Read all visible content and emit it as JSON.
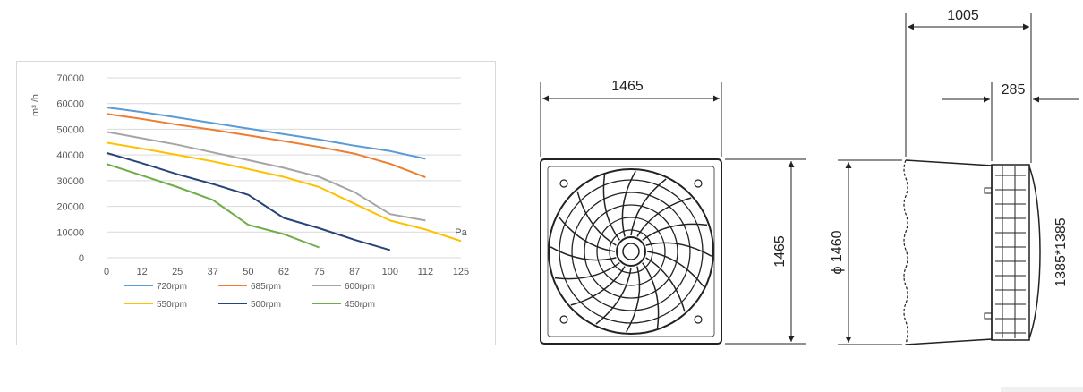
{
  "chart_data": {
    "type": "line",
    "ylabel": "m³ /h",
    "xlabel": "Pa",
    "ylim": [
      0,
      70000
    ],
    "yticks": [
      0,
      10000,
      20000,
      30000,
      40000,
      50000,
      60000,
      70000
    ],
    "categories": [
      "0",
      "12",
      "25",
      "37",
      "50",
      "62",
      "75",
      "87",
      "100",
      "112",
      "125"
    ],
    "grid": true,
    "legend_position": "bottom",
    "series": [
      {
        "name": "720rpm",
        "color": "#5b9bd5",
        "values": [
          58500,
          56700,
          54600,
          52400,
          50300,
          48100,
          46000,
          43600,
          41500,
          38500,
          null
        ]
      },
      {
        "name": "685rpm",
        "color": "#ed7d31",
        "values": [
          56000,
          54000,
          51800,
          49800,
          47600,
          45400,
          43100,
          40500,
          36600,
          31300,
          null
        ]
      },
      {
        "name": "600rpm",
        "color": "#a5a5a5",
        "values": [
          49000,
          46500,
          44000,
          41000,
          38000,
          35000,
          31500,
          25500,
          17000,
          14500,
          null
        ]
      },
      {
        "name": "550rpm",
        "color": "#ffc000",
        "values": [
          44800,
          42500,
          40000,
          37500,
          34500,
          31500,
          27500,
          21000,
          14500,
          11000,
          6500
        ]
      },
      {
        "name": "500rpm",
        "color": "#264478",
        "values": [
          40800,
          36800,
          32500,
          28700,
          24500,
          15500,
          11500,
          7000,
          3000,
          null,
          null
        ]
      },
      {
        "name": "450rpm",
        "color": "#70ad47",
        "values": [
          36500,
          32000,
          27500,
          22500,
          12800,
          9200,
          4000,
          null,
          null,
          null,
          null
        ]
      }
    ]
  },
  "drawing": {
    "front_width": "1465",
    "front_height": "1465",
    "side_depth": "1005",
    "side_diameter": "ϕ 1460",
    "side_offset": "285",
    "side_frame": "1385*1385"
  }
}
